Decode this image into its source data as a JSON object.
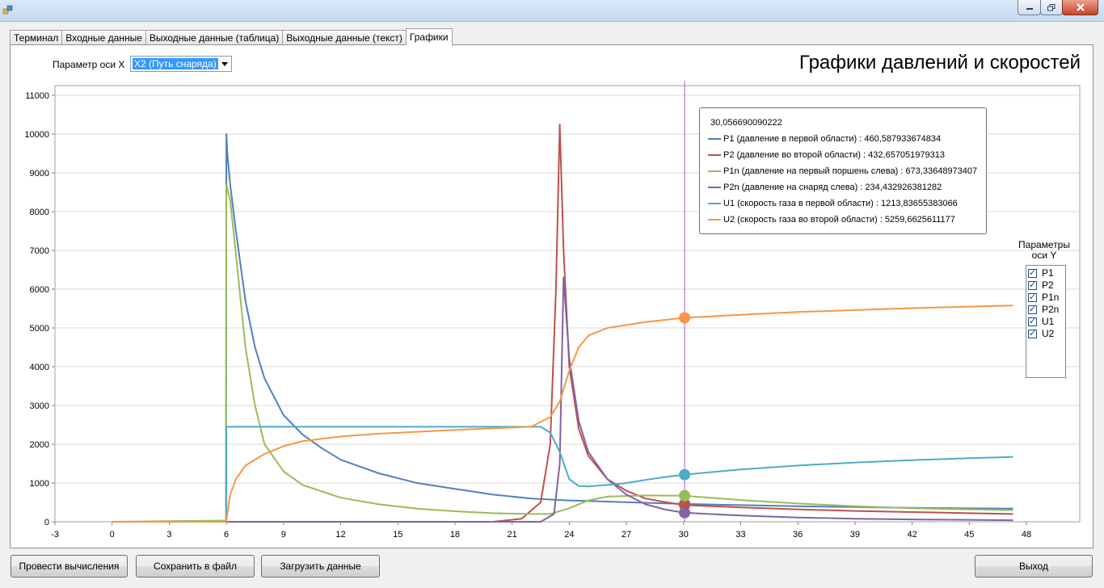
{
  "window": {
    "minimize_icon": "minimize-icon",
    "maximize_icon": "maximize-icon",
    "close_icon": "close-icon"
  },
  "tabs": [
    {
      "label": "Терминал"
    },
    {
      "label": "Входные данные"
    },
    {
      "label": "Выходные данные (таблица)"
    },
    {
      "label": "Выходные данные (текст)"
    },
    {
      "label": "Графики",
      "active": true
    }
  ],
  "x_param": {
    "label": "Параметр оси X",
    "selected": "X2 (Путь снаряда)"
  },
  "y_param": {
    "title": "Параметры оси Y",
    "items": [
      {
        "label": "P1",
        "checked": true
      },
      {
        "label": "P2",
        "checked": true
      },
      {
        "label": "P1n",
        "checked": true
      },
      {
        "label": "P2n",
        "checked": true
      },
      {
        "label": "U1",
        "checked": true
      },
      {
        "label": "U2",
        "checked": true
      }
    ]
  },
  "buttons": {
    "compute": "Провести вычисления",
    "save": "Сохранить в файл",
    "load": "Загрузить данные",
    "exit": "Выход"
  },
  "chart_data": {
    "type": "line",
    "title": "Графики давлений и скоростей",
    "xlim": [
      -3,
      50
    ],
    "ylim": [
      0,
      11000
    ],
    "x_ticks": [
      -3,
      0,
      3,
      6,
      9,
      12,
      15,
      18,
      21,
      24,
      27,
      30,
      33,
      36,
      39,
      42,
      45,
      48
    ],
    "y_ticks": [
      0,
      1000,
      2000,
      3000,
      4000,
      5000,
      6000,
      7000,
      8000,
      9000,
      10000,
      11000
    ],
    "grid": true,
    "cursor": {
      "x": 30.056690090222,
      "label": "30,056690090222"
    },
    "legend_entries": [
      "P1 (давление в первой области) : 460,587933674834",
      "P2 (давление во второй области) : 432,657051979313",
      "P1n (давление на первый поршень слева) : 673,33648973407",
      "P2n (давление на снаряд слева) : 234,432926381282",
      "U1 (скорость газа в первой области) : 1213,83655383066",
      "U2 (скорость газа во второй области) : 5259,6625611177"
    ],
    "series": [
      {
        "name": "P1",
        "color": "#4f81bd",
        "cursor_value": 460.587933674834,
        "points": [
          [
            0,
            0
          ],
          [
            5.5,
            0
          ],
          [
            5.98,
            0
          ],
          [
            6.0,
            10000
          ],
          [
            6.05,
            9500
          ],
          [
            6.2,
            8700
          ],
          [
            6.5,
            7500
          ],
          [
            7.0,
            5700
          ],
          [
            7.5,
            4500
          ],
          [
            8.0,
            3700
          ],
          [
            9.0,
            2750
          ],
          [
            10,
            2250
          ],
          [
            11,
            1900
          ],
          [
            12,
            1600
          ],
          [
            14,
            1250
          ],
          [
            16,
            1000
          ],
          [
            18,
            850
          ],
          [
            20,
            700
          ],
          [
            22,
            600
          ],
          [
            24,
            550
          ],
          [
            26,
            520
          ],
          [
            28,
            490
          ],
          [
            30,
            460
          ],
          [
            33,
            430
          ],
          [
            36,
            400
          ],
          [
            39,
            380
          ],
          [
            42,
            360
          ],
          [
            45,
            345
          ],
          [
            47.3,
            340
          ]
        ]
      },
      {
        "name": "P2",
        "color": "#c0504d",
        "cursor_value": 432.657051979313,
        "points": [
          [
            0,
            0
          ],
          [
            20,
            0
          ],
          [
            21.5,
            80
          ],
          [
            22.5,
            500
          ],
          [
            23.0,
            2000
          ],
          [
            23.3,
            6000
          ],
          [
            23.5,
            10250
          ],
          [
            23.7,
            7000
          ],
          [
            24.0,
            4000
          ],
          [
            24.5,
            2400
          ],
          [
            25,
            1700
          ],
          [
            26,
            1100
          ],
          [
            27,
            800
          ],
          [
            28,
            600
          ],
          [
            29,
            510
          ],
          [
            30,
            433
          ],
          [
            33,
            370
          ],
          [
            36,
            320
          ],
          [
            39,
            280
          ],
          [
            42,
            250
          ],
          [
            45,
            220
          ],
          [
            47.3,
            200
          ]
        ]
      },
      {
        "name": "P1n",
        "color": "#9bbb59",
        "cursor_value": 673.33648973407,
        "points": [
          [
            0,
            0
          ],
          [
            5.5,
            30
          ],
          [
            5.98,
            30
          ],
          [
            6.0,
            8700
          ],
          [
            6.2,
            8300
          ],
          [
            6.5,
            6900
          ],
          [
            7.0,
            4500
          ],
          [
            7.5,
            3000
          ],
          [
            8.0,
            2000
          ],
          [
            9.0,
            1300
          ],
          [
            10,
            950
          ],
          [
            12,
            620
          ],
          [
            14,
            450
          ],
          [
            16,
            340
          ],
          [
            18,
            270
          ],
          [
            20,
            220
          ],
          [
            22,
            200
          ],
          [
            23,
            200
          ],
          [
            24,
            350
          ],
          [
            25,
            550
          ],
          [
            26,
            650
          ],
          [
            28,
            680
          ],
          [
            30,
            673
          ],
          [
            33,
            560
          ],
          [
            36,
            470
          ],
          [
            39,
            400
          ],
          [
            42,
            350
          ],
          [
            45,
            320
          ],
          [
            47.3,
            300
          ]
        ]
      },
      {
        "name": "P2n",
        "color": "#8064a2",
        "cursor_value": 234.432926381282,
        "points": [
          [
            0,
            0
          ],
          [
            22.5,
            0
          ],
          [
            23.2,
            200
          ],
          [
            23.5,
            1500
          ],
          [
            23.7,
            6300
          ],
          [
            24.0,
            4200
          ],
          [
            24.5,
            2600
          ],
          [
            25,
            1800
          ],
          [
            26,
            1100
          ],
          [
            27,
            700
          ],
          [
            28,
            450
          ],
          [
            29,
            320
          ],
          [
            30,
            234
          ],
          [
            33,
            160
          ],
          [
            36,
            110
          ],
          [
            39,
            80
          ],
          [
            42,
            60
          ],
          [
            45,
            50
          ],
          [
            47.3,
            40
          ]
        ]
      },
      {
        "name": "U1",
        "color": "#4bacc6",
        "cursor_value": 1213.83655383066,
        "points": [
          [
            6.0,
            0
          ],
          [
            6.0,
            2450
          ],
          [
            22.5,
            2450
          ],
          [
            23.0,
            2300
          ],
          [
            23.5,
            1800
          ],
          [
            24.0,
            1100
          ],
          [
            24.5,
            920
          ],
          [
            25,
            910
          ],
          [
            26,
            950
          ],
          [
            27,
            1000
          ],
          [
            28,
            1080
          ],
          [
            29,
            1150
          ],
          [
            30,
            1214
          ],
          [
            33,
            1350
          ],
          [
            36,
            1450
          ],
          [
            39,
            1530
          ],
          [
            42,
            1590
          ],
          [
            45,
            1640
          ],
          [
            47.3,
            1670
          ]
        ]
      },
      {
        "name": "U2",
        "color": "#f79646",
        "cursor_value": 5259.6625611177,
        "points": [
          [
            0,
            0
          ],
          [
            5.98,
            0
          ],
          [
            6.0,
            50
          ],
          [
            6.2,
            700
          ],
          [
            6.5,
            1100
          ],
          [
            7,
            1450
          ],
          [
            8,
            1750
          ],
          [
            9,
            1950
          ],
          [
            10,
            2080
          ],
          [
            12,
            2200
          ],
          [
            14,
            2270
          ],
          [
            16,
            2320
          ],
          [
            18,
            2370
          ],
          [
            20,
            2410
          ],
          [
            22,
            2450
          ],
          [
            23,
            2700
          ],
          [
            23.5,
            3100
          ],
          [
            24,
            3900
          ],
          [
            24.5,
            4500
          ],
          [
            25,
            4800
          ],
          [
            26,
            5000
          ],
          [
            28,
            5150
          ],
          [
            30,
            5260
          ],
          [
            33,
            5340
          ],
          [
            36,
            5410
          ],
          [
            39,
            5460
          ],
          [
            42,
            5510
          ],
          [
            45,
            5550
          ],
          [
            47.3,
            5580
          ]
        ]
      }
    ]
  }
}
